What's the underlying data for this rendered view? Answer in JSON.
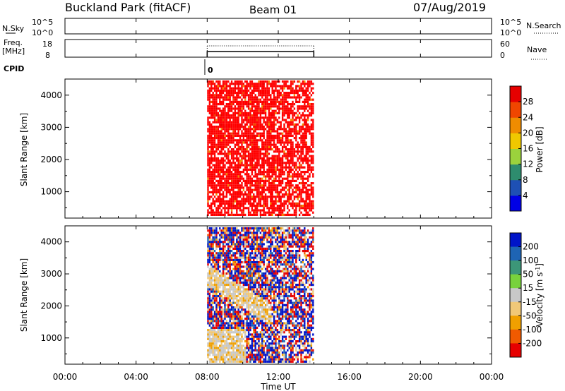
{
  "header": {
    "station": "Buckland Park (fitACF)",
    "beam": "Beam 01",
    "date": "07/Aug/2019"
  },
  "top_panels": {
    "nsky_label": "N.Sky",
    "nsky_ticks": [
      "10^5",
      "10^0"
    ],
    "nsearch_label": "N.Search",
    "nsearch_ticks": [
      "10^5",
      "10^0"
    ],
    "freq_label": "Freq.",
    "freq_unit": "[MHz]",
    "freq_ticks": [
      "18",
      "8"
    ],
    "nave_label": "Nave",
    "nave_ticks": [
      "60",
      "0"
    ],
    "cpid_label": "CPID",
    "cpid_value": "0"
  },
  "chart_data": [
    {
      "type": "heatmap",
      "panel": "power",
      "xlabel": "Time UT",
      "ylabel": "Slant Range [km]",
      "xticks": [
        "00:00",
        "04:00",
        "08:00",
        "12:00",
        "16:00",
        "20:00",
        "00:00"
      ],
      "x_hours": [
        0,
        4,
        8,
        12,
        16,
        20,
        24
      ],
      "yticks": [
        1000,
        2000,
        3000,
        4000
      ],
      "ylim": [
        180,
        4500
      ],
      "data_window_hours": [
        8.0,
        14.0
      ],
      "colorbar": {
        "label": "Power [dB]",
        "ticks": [
          4,
          8,
          12,
          16,
          20,
          24,
          28
        ],
        "colors": [
          "#0000e6",
          "#1e50b4",
          "#2e8c6e",
          "#9bd23c",
          "#f0c800",
          "#f08c00",
          "#f04600",
          "#e60000"
        ]
      },
      "dominant_color": "#ff0000"
    },
    {
      "type": "heatmap",
      "panel": "velocity",
      "xlabel": "Time UT",
      "ylabel": "Slant Range [km]",
      "xticks": [
        "00:00",
        "04:00",
        "08:00",
        "12:00",
        "16:00",
        "20:00",
        "00:00"
      ],
      "x_hours": [
        0,
        4,
        8,
        12,
        16,
        20,
        24
      ],
      "yticks": [
        1000,
        2000,
        3000,
        4000
      ],
      "ylim": [
        180,
        4500
      ],
      "data_window_hours": [
        8.0,
        14.0
      ],
      "colorbar": {
        "label": "Velocity [m s^-1]",
        "ticks": [
          "200",
          "100",
          "50",
          "15",
          "-15",
          "-50",
          "-100",
          "-200"
        ],
        "colors": [
          "#0014c8",
          "#1e64b4",
          "#3c9678",
          "#78d23c",
          "#c8c8c8",
          "#f0c878",
          "#f0a000",
          "#f05a00",
          "#e60000"
        ]
      }
    }
  ]
}
